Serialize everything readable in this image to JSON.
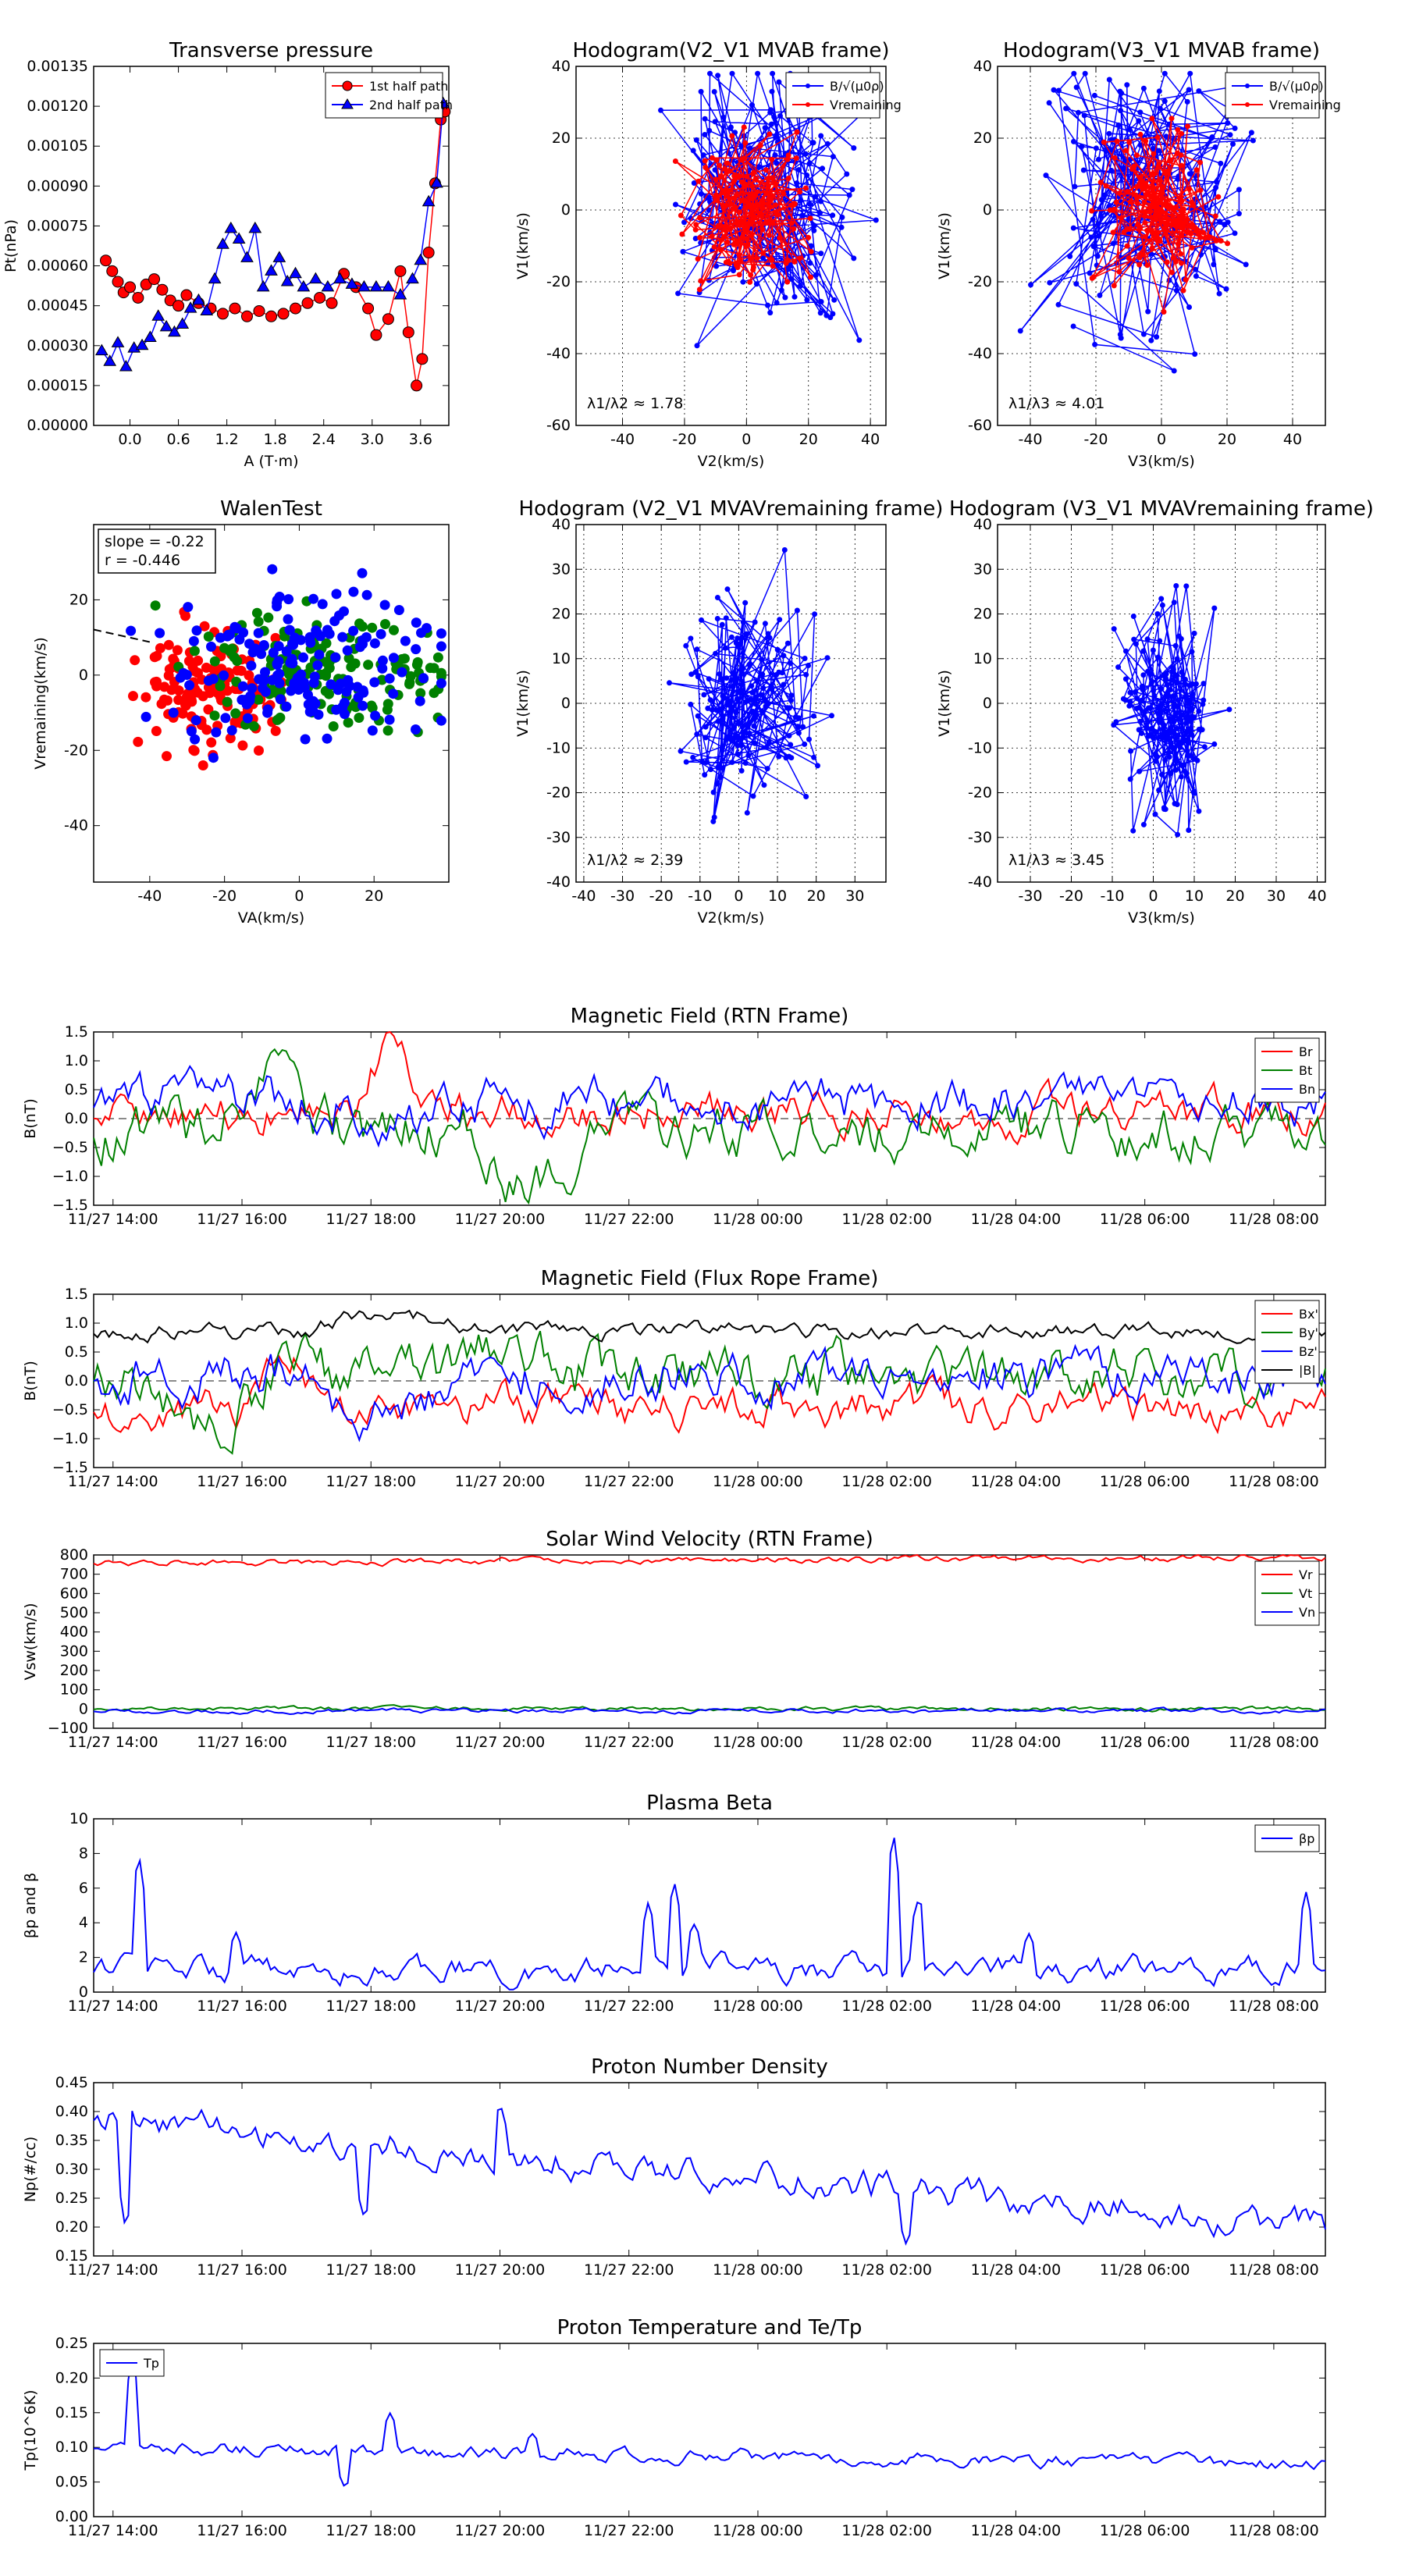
{
  "colors": {
    "red": "#ff0000",
    "blue": "#0000ff",
    "green": "#008000",
    "black": "#000000",
    "grid": "#000000"
  },
  "chart_data": [
    {
      "id": "transverse-pressure",
      "type": "scatter",
      "title": "Transverse pressure",
      "xlabel": "A (T·m)",
      "ylabel": "Pt(nPa)",
      "xlim": [
        -0.45,
        3.95
      ],
      "ylim": [
        0,
        0.00135
      ],
      "xticks": [
        0.0,
        0.6,
        1.2,
        1.8,
        2.4,
        3.0,
        3.6
      ],
      "xtick_labels": [
        "0.0",
        "0.6",
        "1.2",
        "1.8",
        "2.4",
        "3.0",
        "3.6"
      ],
      "yticks": [
        0,
        0.00015,
        0.0003,
        0.00045,
        0.0006,
        0.00075,
        0.0009,
        0.00105,
        0.0012,
        0.00135
      ],
      "ytick_labels": [
        "0.00000",
        "0.00015",
        "0.00030",
        "0.00045",
        "0.00060",
        "0.00075",
        "0.00090",
        "0.00105",
        "0.00120",
        "0.00135"
      ],
      "grid": false,
      "legend": "top-right",
      "series": [
        {
          "name": "1st half path",
          "color": "red",
          "marker": "circle",
          "x": [
            -0.3,
            -0.22,
            -0.15,
            -0.08,
            0.0,
            0.1,
            0.2,
            0.3,
            0.4,
            0.5,
            0.6,
            0.7,
            0.85,
            1.0,
            1.15,
            1.3,
            1.45,
            1.6,
            1.75,
            1.9,
            2.05,
            2.2,
            2.35,
            2.5,
            2.65,
            2.8,
            2.95,
            3.05,
            3.2,
            3.35,
            3.45,
            3.55,
            3.62,
            3.7,
            3.78,
            3.85,
            3.9
          ],
          "y": [
            0.00062,
            0.00058,
            0.00054,
            0.0005,
            0.00052,
            0.00048,
            0.00053,
            0.00055,
            0.00051,
            0.00047,
            0.00045,
            0.00049,
            0.00046,
            0.00044,
            0.00042,
            0.00044,
            0.00041,
            0.00043,
            0.00041,
            0.00042,
            0.00044,
            0.00046,
            0.00048,
            0.00046,
            0.00057,
            0.00052,
            0.00044,
            0.00034,
            0.0004,
            0.00058,
            0.00035,
            0.00015,
            0.00025,
            0.00065,
            0.00091,
            0.00115,
            0.00118
          ]
        },
        {
          "name": "2nd half path",
          "color": "blue",
          "marker": "triangle",
          "x": [
            -0.35,
            -0.25,
            -0.15,
            -0.05,
            0.05,
            0.15,
            0.25,
            0.35,
            0.45,
            0.55,
            0.65,
            0.75,
            0.85,
            0.95,
            1.05,
            1.15,
            1.25,
            1.35,
            1.45,
            1.55,
            1.65,
            1.75,
            1.85,
            1.95,
            2.05,
            2.15,
            2.3,
            2.45,
            2.6,
            2.75,
            2.9,
            3.05,
            3.2,
            3.35,
            3.5,
            3.6,
            3.7,
            3.8,
            3.88
          ],
          "y": [
            0.00028,
            0.00024,
            0.00031,
            0.00022,
            0.00029,
            0.0003,
            0.00033,
            0.00041,
            0.00037,
            0.00035,
            0.00038,
            0.00044,
            0.00047,
            0.00043,
            0.00055,
            0.00068,
            0.00074,
            0.0007,
            0.00063,
            0.00074,
            0.00052,
            0.00058,
            0.00063,
            0.00054,
            0.00057,
            0.00052,
            0.00055,
            0.00052,
            0.00055,
            0.00053,
            0.00052,
            0.00052,
            0.00052,
            0.00049,
            0.00055,
            0.00062,
            0.00084,
            0.00091,
            0.00121
          ]
        }
      ]
    },
    {
      "id": "hodogram-v2-v1-mvab",
      "type": "line",
      "title": "Hodogram(V2_V1 MVAB frame)",
      "xlabel": "V2(km/s)",
      "ylabel": "V1(km/s)",
      "xlim": [
        -55,
        45
      ],
      "ylim": [
        -60,
        40
      ],
      "xticks": [
        -40,
        -20,
        0,
        20,
        40
      ],
      "yticks": [
        -60,
        -40,
        -20,
        0,
        20,
        40
      ],
      "grid": true,
      "legend": "top-right",
      "annotation": "λ1/λ2 ≈ 1.78",
      "legend_labels": [
        "B/√(μ0ρ)",
        "Vremaining"
      ],
      "series": [
        {
          "name": "B/√(μ0ρ)",
          "color": "blue",
          "center": [
            5,
            5
          ],
          "spread": [
            14,
            18
          ],
          "count": 180
        },
        {
          "name": "Vremaining",
          "color": "red",
          "center": [
            0,
            0
          ],
          "spread": [
            9,
            10
          ],
          "count": 150
        }
      ]
    },
    {
      "id": "hodogram-v3-v1-mvab",
      "type": "line",
      "title": "Hodogram(V3_V1 MVAB frame)",
      "xlabel": "V3(km/s)",
      "ylabel": "V1(km/s)",
      "xlim": [
        -50,
        50
      ],
      "ylim": [
        -60,
        40
      ],
      "xticks": [
        -40,
        -20,
        0,
        20,
        40
      ],
      "yticks": [
        -60,
        -40,
        -20,
        0,
        20,
        40
      ],
      "grid": true,
      "legend": "top-right",
      "annotation": "λ1/λ3 ≈ 4.01",
      "legend_labels": [
        "B/√(μ0ρ)",
        "Vremaining"
      ],
      "series": [
        {
          "name": "B/√(μ0ρ)",
          "color": "blue",
          "center": [
            -5,
            5
          ],
          "spread": [
            14,
            18
          ],
          "count": 180
        },
        {
          "name": "Vremaining",
          "color": "red",
          "center": [
            0,
            0
          ],
          "spread": [
            9,
            10
          ],
          "count": 150
        }
      ]
    },
    {
      "id": "walen-test",
      "type": "scatter",
      "title": "WalenTest",
      "xlabel": "VA(km/s)",
      "ylabel": "Vremaining(km/s)",
      "xlim": [
        -55,
        40
      ],
      "ylim": [
        -55,
        40
      ],
      "xticks": [
        -40,
        -20,
        0,
        20
      ],
      "yticks": [
        -40,
        -20,
        0,
        20
      ],
      "grid": false,
      "annotation": [
        "slope = -0.22",
        "r = -0.446"
      ],
      "fit_slope": -0.22,
      "series": [
        {
          "name": "red",
          "color": "red",
          "center": [
            -22,
            -5
          ],
          "spread": [
            10,
            8
          ],
          "count": 140
        },
        {
          "name": "green",
          "color": "green",
          "center": [
            5,
            0
          ],
          "spread": [
            18,
            8
          ],
          "count": 150
        },
        {
          "name": "blue",
          "color": "blue",
          "center": [
            2,
            2
          ],
          "spread": [
            18,
            10
          ],
          "count": 170
        }
      ]
    },
    {
      "id": "hodogram-v2-v1-mvav",
      "type": "line",
      "title": "Hodogram (V2_V1 MVAVremaining frame)",
      "xlabel": "V2(km/s)",
      "ylabel": "V1(km/s)",
      "xlim": [
        -42,
        38
      ],
      "ylim": [
        -40,
        40
      ],
      "xticks": [
        -40,
        -30,
        -20,
        -10,
        0,
        10,
        20,
        30
      ],
      "yticks": [
        -40,
        -30,
        -20,
        -10,
        0,
        10,
        20,
        30,
        40
      ],
      "grid": true,
      "annotation": "λ1/λ2 ≈ 2.39",
      "series": [
        {
          "name": "V",
          "color": "blue",
          "center": [
            2,
            0
          ],
          "spread": [
            8,
            12
          ],
          "count": 160
        }
      ]
    },
    {
      "id": "hodogram-v3-v1-mvav",
      "type": "line",
      "title": "Hodogram (V3_V1 MVAVremaining frame)",
      "xlabel": "V3(km/s)",
      "ylabel": "V1(km/s)",
      "xlim": [
        -38,
        42
      ],
      "ylim": [
        -40,
        40
      ],
      "xticks": [
        -30,
        -20,
        -10,
        0,
        10,
        20,
        30,
        40
      ],
      "yticks": [
        -40,
        -30,
        -20,
        -10,
        0,
        10,
        20,
        30,
        40
      ],
      "grid": true,
      "annotation": "λ1/λ3 ≈ 3.45",
      "series": [
        {
          "name": "V",
          "color": "blue",
          "center": [
            3,
            0
          ],
          "spread": [
            6,
            12
          ],
          "count": 160
        }
      ]
    },
    {
      "id": "magnetic-field-rtn",
      "type": "line",
      "title": "Magnetic Field (RTN Frame)",
      "ylabel": "B(nT)",
      "xlim_hours": [
        13.7,
        32.8
      ],
      "ylim": [
        -1.5,
        1.5
      ],
      "yticks": [
        -1.5,
        -1.0,
        -0.5,
        0.0,
        0.5,
        1.0,
        1.5
      ],
      "ytick_labels": [
        "−1.5",
        "−1.0",
        "−0.5",
        "0.0",
        "0.5",
        "1.0",
        "1.5"
      ],
      "zero_line": true,
      "legend": "top-right",
      "series": [
        {
          "name": "Br",
          "color": "red",
          "base": 0.1,
          "amp": 0.25,
          "events": [
            [
              17.8,
              18.8,
              1.1
            ]
          ]
        },
        {
          "name": "Bt",
          "color": "green",
          "base": -0.2,
          "amp": 0.35,
          "events": [
            [
              15.5,
              17.2,
              0.8
            ],
            [
              19.5,
              21.5,
              -0.8
            ]
          ]
        },
        {
          "name": "Bn",
          "color": "blue",
          "base": 0.3,
          "amp": 0.3,
          "events": [
            [
              17.5,
              19.0,
              -0.7
            ]
          ]
        }
      ]
    },
    {
      "id": "magnetic-field-fluxrope",
      "type": "line",
      "title": "Magnetic Field (Flux Rope Frame)",
      "ylabel": "B(nT)",
      "xlim_hours": [
        13.7,
        32.8
      ],
      "ylim": [
        -1.5,
        1.5
      ],
      "yticks": [
        -1.5,
        -1.0,
        -0.5,
        0.0,
        0.5,
        1.0,
        1.5
      ],
      "ytick_labels": [
        "−1.5",
        "−1.0",
        "−0.5",
        "0.0",
        "0.5",
        "1.0",
        "1.5"
      ],
      "zero_line": true,
      "legend": "top-right",
      "series": [
        {
          "name": "Bx'",
          "color": "red",
          "base": -0.45,
          "amp": 0.25,
          "events": [
            [
              16.0,
              17.5,
              0.6
            ]
          ]
        },
        {
          "name": "By'",
          "color": "green",
          "base": 0.1,
          "amp": 0.35,
          "events": [
            [
              14.0,
              16.5,
              -0.7
            ],
            [
              19.5,
              21.0,
              0.6
            ]
          ]
        },
        {
          "name": "Bz'",
          "color": "blue",
          "base": 0.1,
          "amp": 0.3,
          "events": [
            [
              17.0,
              19.5,
              -0.8
            ]
          ]
        },
        {
          "name": "|B|",
          "color": "black",
          "base": 0.85,
          "amp": 0.1,
          "events": [
            [
              17.0,
              19.5,
              0.35
            ]
          ]
        }
      ]
    },
    {
      "id": "solar-wind-velocity",
      "type": "line",
      "title": "Solar Wind Velocity (RTN Frame)",
      "ylabel": "Vsw(km/s)",
      "xlim_hours": [
        13.7,
        32.8
      ],
      "ylim": [
        -100,
        800
      ],
      "yticks": [
        -100,
        0,
        100,
        200,
        300,
        400,
        500,
        600,
        700,
        800
      ],
      "ytick_labels": [
        "−100",
        "0",
        "100",
        "200",
        "300",
        "400",
        "500",
        "600",
        "700",
        "800"
      ],
      "legend": "top-right",
      "series": [
        {
          "name": "Vr",
          "color": "red",
          "base": 760,
          "amp": 12,
          "trend": 25
        },
        {
          "name": "Vt",
          "color": "green",
          "base": 0,
          "amp": 8,
          "trend": 0
        },
        {
          "name": "Vn",
          "color": "blue",
          "base": -10,
          "amp": 8,
          "trend": 0
        }
      ]
    },
    {
      "id": "plasma-beta",
      "type": "line",
      "title": "Plasma Beta",
      "ylabel": "βp and β",
      "xlim_hours": [
        13.7,
        32.8
      ],
      "ylim": [
        0,
        10
      ],
      "yticks": [
        0,
        2,
        4,
        6,
        8,
        10
      ],
      "ytick_labels": [
        "0",
        "2",
        "4",
        "6",
        "8",
        "10"
      ],
      "legend": "top-right",
      "series": [
        {
          "name": "βp",
          "color": "blue",
          "base": 1.3,
          "amp": 0.5,
          "spikes": [
            [
              14.4,
              8.0
            ],
            [
              15.9,
              3.5
            ],
            [
              22.3,
              5.2
            ],
            [
              22.7,
              6.5
            ],
            [
              23.0,
              4.0
            ],
            [
              26.1,
              9.4
            ],
            [
              26.5,
              5.6
            ],
            [
              28.2,
              3.4
            ],
            [
              32.5,
              5.8
            ]
          ]
        }
      ]
    },
    {
      "id": "proton-number-density",
      "type": "line",
      "title": "Proton Number Density",
      "ylabel": "Np(#/cc)",
      "xlim_hours": [
        13.7,
        32.8
      ],
      "ylim": [
        0.15,
        0.45
      ],
      "yticks": [
        0.15,
        0.2,
        0.25,
        0.3,
        0.35,
        0.4,
        0.45
      ],
      "ytick_labels": [
        "0.15",
        "0.20",
        "0.25",
        "0.30",
        "0.35",
        "0.40",
        "0.45"
      ],
      "series": [
        {
          "name": "Np",
          "color": "blue",
          "start": 0.39,
          "end": 0.2,
          "amp": 0.02,
          "spikes": [
            [
              14.2,
              0.19
            ],
            [
              17.9,
              0.21
            ],
            [
              20.0,
              0.42
            ],
            [
              26.3,
              0.17
            ]
          ]
        }
      ]
    },
    {
      "id": "proton-temperature",
      "type": "line",
      "title": "Proton Temperature and Te/Tp",
      "ylabel": "Tp(10^6K)",
      "xlim_hours": [
        13.7,
        32.8
      ],
      "ylim": [
        0,
        0.25
      ],
      "yticks": [
        0,
        0.05,
        0.1,
        0.15,
        0.2,
        0.25
      ],
      "ytick_labels": [
        "0.00",
        "0.05",
        "0.10",
        "0.15",
        "0.20",
        "0.25"
      ],
      "legend": "top-left",
      "series": [
        {
          "name": "Tp",
          "color": "blue",
          "start": 0.1,
          "end": 0.075,
          "amp": 0.007,
          "spikes": [
            [
              14.3,
              0.23
            ],
            [
              17.6,
              0.04
            ],
            [
              18.3,
              0.15
            ],
            [
              20.5,
              0.12
            ]
          ]
        }
      ]
    }
  ],
  "time_axis": {
    "hours": [
      14,
      16,
      18,
      20,
      22,
      24,
      26,
      28,
      30,
      32
    ],
    "labels": [
      "11/27 14:00",
      "11/27 16:00",
      "11/27 18:00",
      "11/27 20:00",
      "11/27 22:00",
      "11/28 00:00",
      "11/28 02:00",
      "11/28 04:00",
      "11/28 06:00",
      "11/28 08:00"
    ]
  }
}
